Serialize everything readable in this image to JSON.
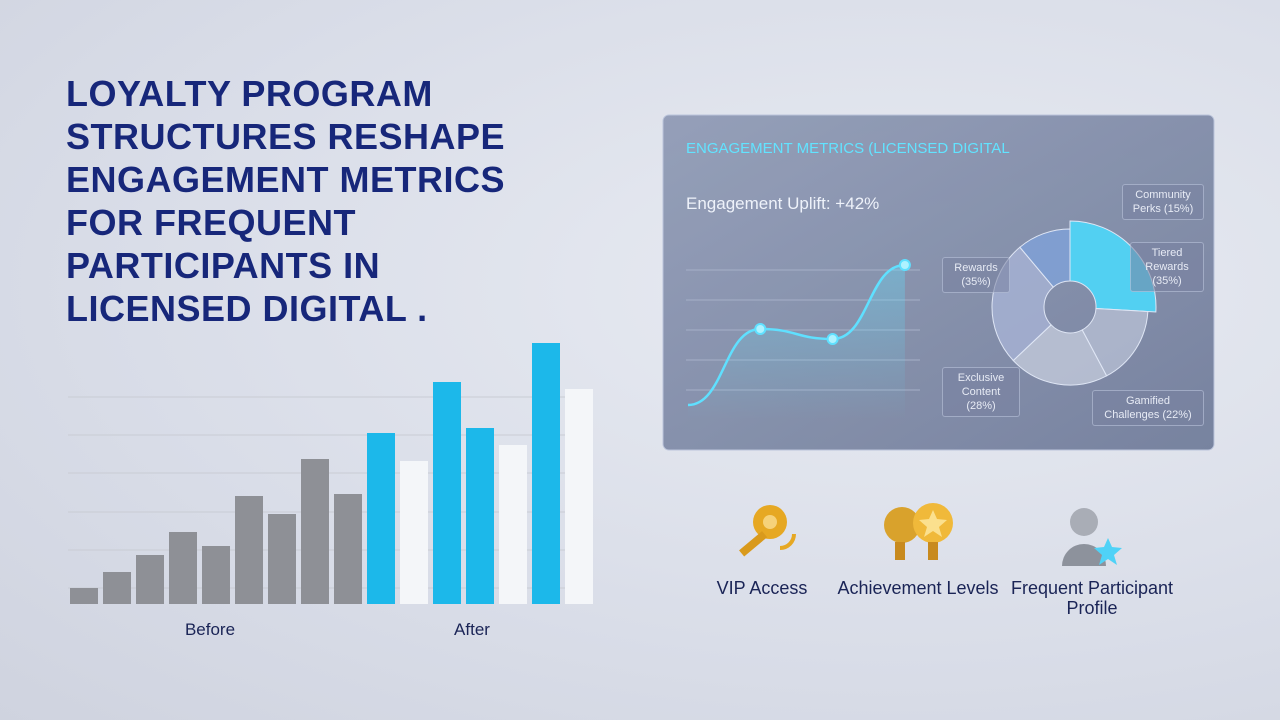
{
  "title_lines": [
    "LOYALTY PROGRAM",
    "STRUCTURES RESHAPE",
    "ENGAGEMENT METRICS",
    "FOR FREQUENT",
    "PARTICIPANTS IN",
    "LICENSED DIGITAL ."
  ],
  "bar_chart": {
    "type": "bar",
    "groups": [
      "Before",
      "After"
    ],
    "values": [
      16,
      32,
      49,
      72,
      58,
      108,
      90,
      145,
      110,
      171,
      143,
      222,
      176,
      159,
      261,
      215
    ],
    "colors": [
      "#8e9096",
      "#8e9096",
      "#8e9096",
      "#8e9096",
      "#8e9096",
      "#8e9096",
      "#8e9096",
      "#8e9096",
      "#8e9096",
      "#1cb8ea",
      "#f4f6f9",
      "#1cb8ea",
      "#1cb8ea",
      "#f4f6f9",
      "#1cb8ea",
      "#f4f6f9"
    ]
  },
  "panel": {
    "title": "ENGAGEMENT METRICS (LICENSED DIGITAL",
    "uplift": "Engagement Uplift: +42%",
    "line_chart": {
      "type": "line",
      "values": [
        15,
        91,
        81,
        155
      ],
      "color": "#5fe0ff"
    },
    "pie_chart": {
      "type": "pie",
      "categories": [
        "Tiered Rewards",
        "Gamified Challenges",
        "Exclusive Content",
        "Rewards",
        "Community Perks"
      ],
      "values": [
        35,
        22,
        28,
        35,
        15
      ],
      "value_labels": [
        "Tiered Rewards (35%)",
        "Gamified Challenges (22%)",
        "Exclusive Content (28%)",
        "Rewards (35%)",
        "Community Perks (15%)"
      ]
    }
  },
  "features": [
    "VIP Access",
    "Achievement Levels",
    "Frequent Participant Profile"
  ]
}
